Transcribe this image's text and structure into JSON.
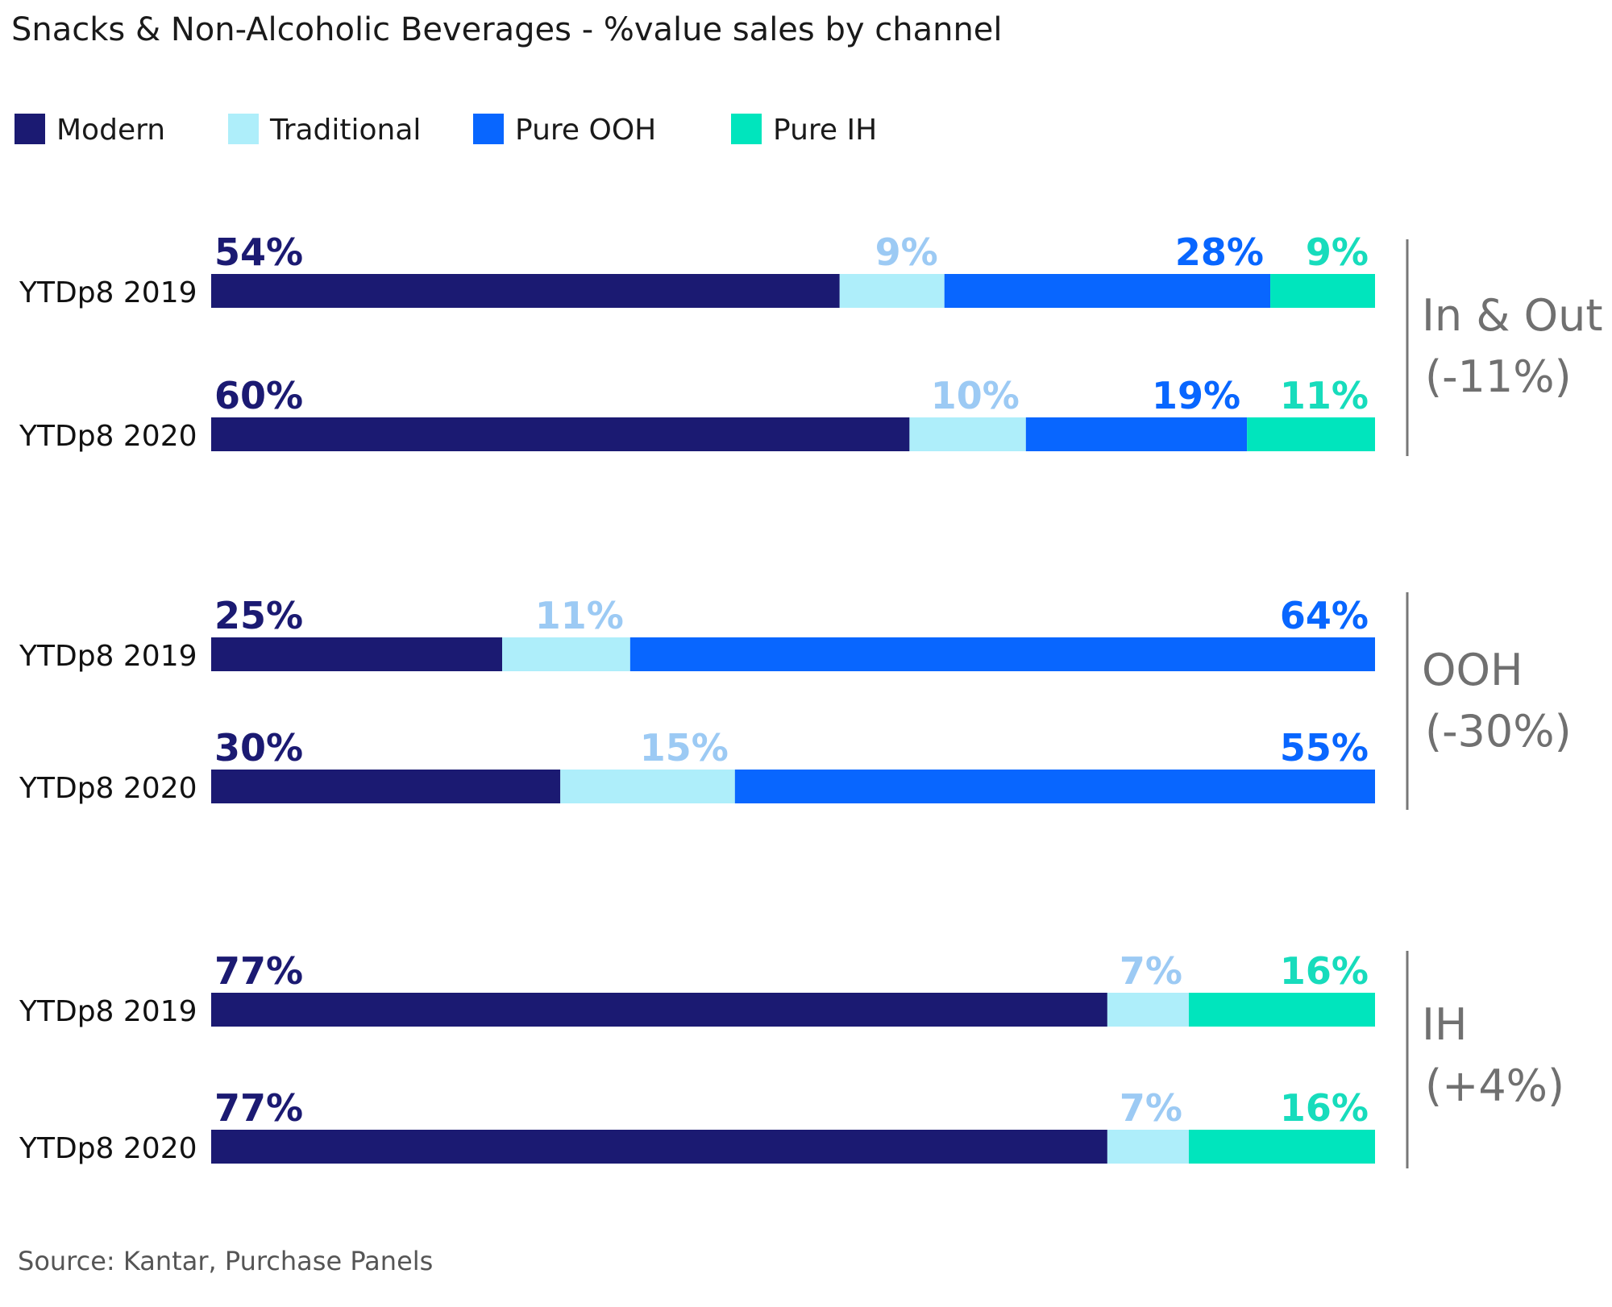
{
  "chart_data": {
    "type": "bar",
    "orientation": "horizontal",
    "stacked": true,
    "normalized": true,
    "title": "Snacks & Non-Alcoholic Beverages - %value sales by channel",
    "source": "Source: Kantar, Purchase Panels",
    "legend_position": "top-left",
    "series": [
      {
        "name": "Modern",
        "color": "#1b1a72"
      },
      {
        "name": "Traditional",
        "color": "#aeeefa",
        "label_color": "#9ccaf4"
      },
      {
        "name": "Pure OOH",
        "color": "#0866ff"
      },
      {
        "name": "Pure IH",
        "color": "#00e5bd",
        "label_color": "#17dcbc"
      }
    ],
    "groups": [
      {
        "label_line1": "In & Out",
        "label_line2": "(-11%)",
        "rows": [
          {
            "label": "YTDp8 2019",
            "values": [
              54,
              9,
              28,
              9
            ],
            "value_labels": [
              "54%",
              "9%",
              "28%",
              "9%"
            ]
          },
          {
            "label": "YTDp8 2020",
            "values": [
              60,
              10,
              19,
              11
            ],
            "value_labels": [
              "60%",
              "10%",
              "19%",
              "11%"
            ]
          }
        ]
      },
      {
        "label_line1": "OOH",
        "label_line2": "(-30%)",
        "rows": [
          {
            "label": "YTDp8 2019",
            "values": [
              25,
              11,
              64,
              0
            ],
            "value_labels": [
              "25%",
              "11%",
              "64%",
              ""
            ]
          },
          {
            "label": "YTDp8 2020",
            "values": [
              30,
              15,
              55,
              0
            ],
            "value_labels": [
              "30%",
              "15%",
              "55%",
              ""
            ]
          }
        ]
      },
      {
        "label_line1": "IH",
        "label_line2": "(+4%)",
        "rows": [
          {
            "label": "YTDp8 2019",
            "values": [
              77,
              7,
              0,
              16
            ],
            "value_labels": [
              "77%",
              "7%",
              "",
              "16%"
            ]
          },
          {
            "label": "YTDp8 2020",
            "values": [
              77,
              7,
              0,
              16
            ],
            "value_labels": [
              "77%",
              "7%",
              "",
              "16%"
            ]
          }
        ]
      }
    ]
  }
}
